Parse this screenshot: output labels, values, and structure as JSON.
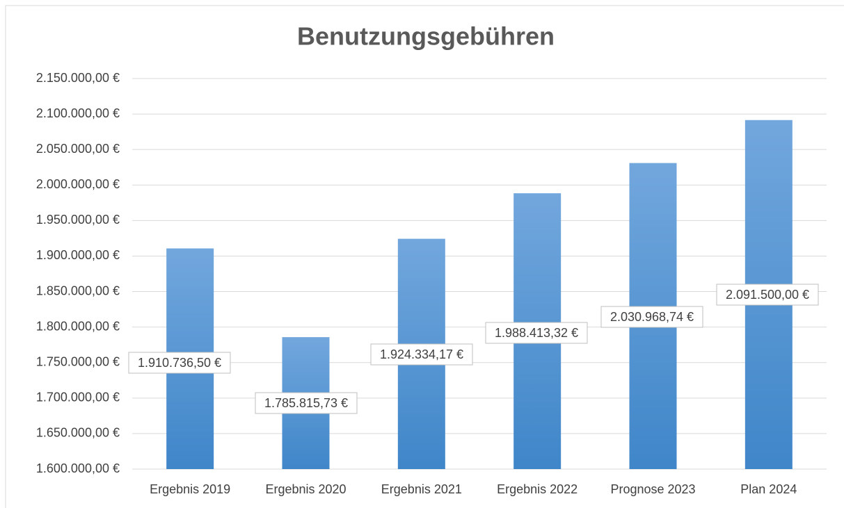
{
  "chart_data": {
    "type": "bar",
    "title": "Benutzungsgebühren",
    "categories": [
      "Ergebnis 2019",
      "Ergebnis 2020",
      "Ergebnis 2021",
      "Ergebnis 2022",
      "Prognose 2023",
      "Plan 2024"
    ],
    "values": [
      1910736.5,
      1785815.73,
      1924334.17,
      1988413.32,
      2030968.74,
      2091500.0
    ],
    "value_labels": [
      "1.910.736,50 €",
      "1.785.815,73 €",
      "1.924.334,17 €",
      "1.988.413,32 €",
      "2.030.968,74 €",
      "2.091.500,00 €"
    ],
    "color": "#5b9bd5",
    "ylim": [
      1600000,
      2150000
    ],
    "yticks": [
      {
        "value": 1600000,
        "label": "1.600.000,00 €"
      },
      {
        "value": 1650000,
        "label": "1.650.000,00 €"
      },
      {
        "value": 1700000,
        "label": "1.700.000,00 €"
      },
      {
        "value": 1750000,
        "label": "1.750.000,00 €"
      },
      {
        "value": 1800000,
        "label": "1.800.000,00 €"
      },
      {
        "value": 1850000,
        "label": "1.850.000,00 €"
      },
      {
        "value": 1900000,
        "label": "1.900.000,00 €"
      },
      {
        "value": 1950000,
        "label": "1.950.000,00 €"
      },
      {
        "value": 2000000,
        "label": "2.000.000,00 €"
      },
      {
        "value": 2050000,
        "label": "2.050.000,00 €"
      },
      {
        "value": 2100000,
        "label": "2.100.000,00 €"
      },
      {
        "value": 2150000,
        "label": "2.150.000,00 €"
      }
    ],
    "grid": true
  }
}
